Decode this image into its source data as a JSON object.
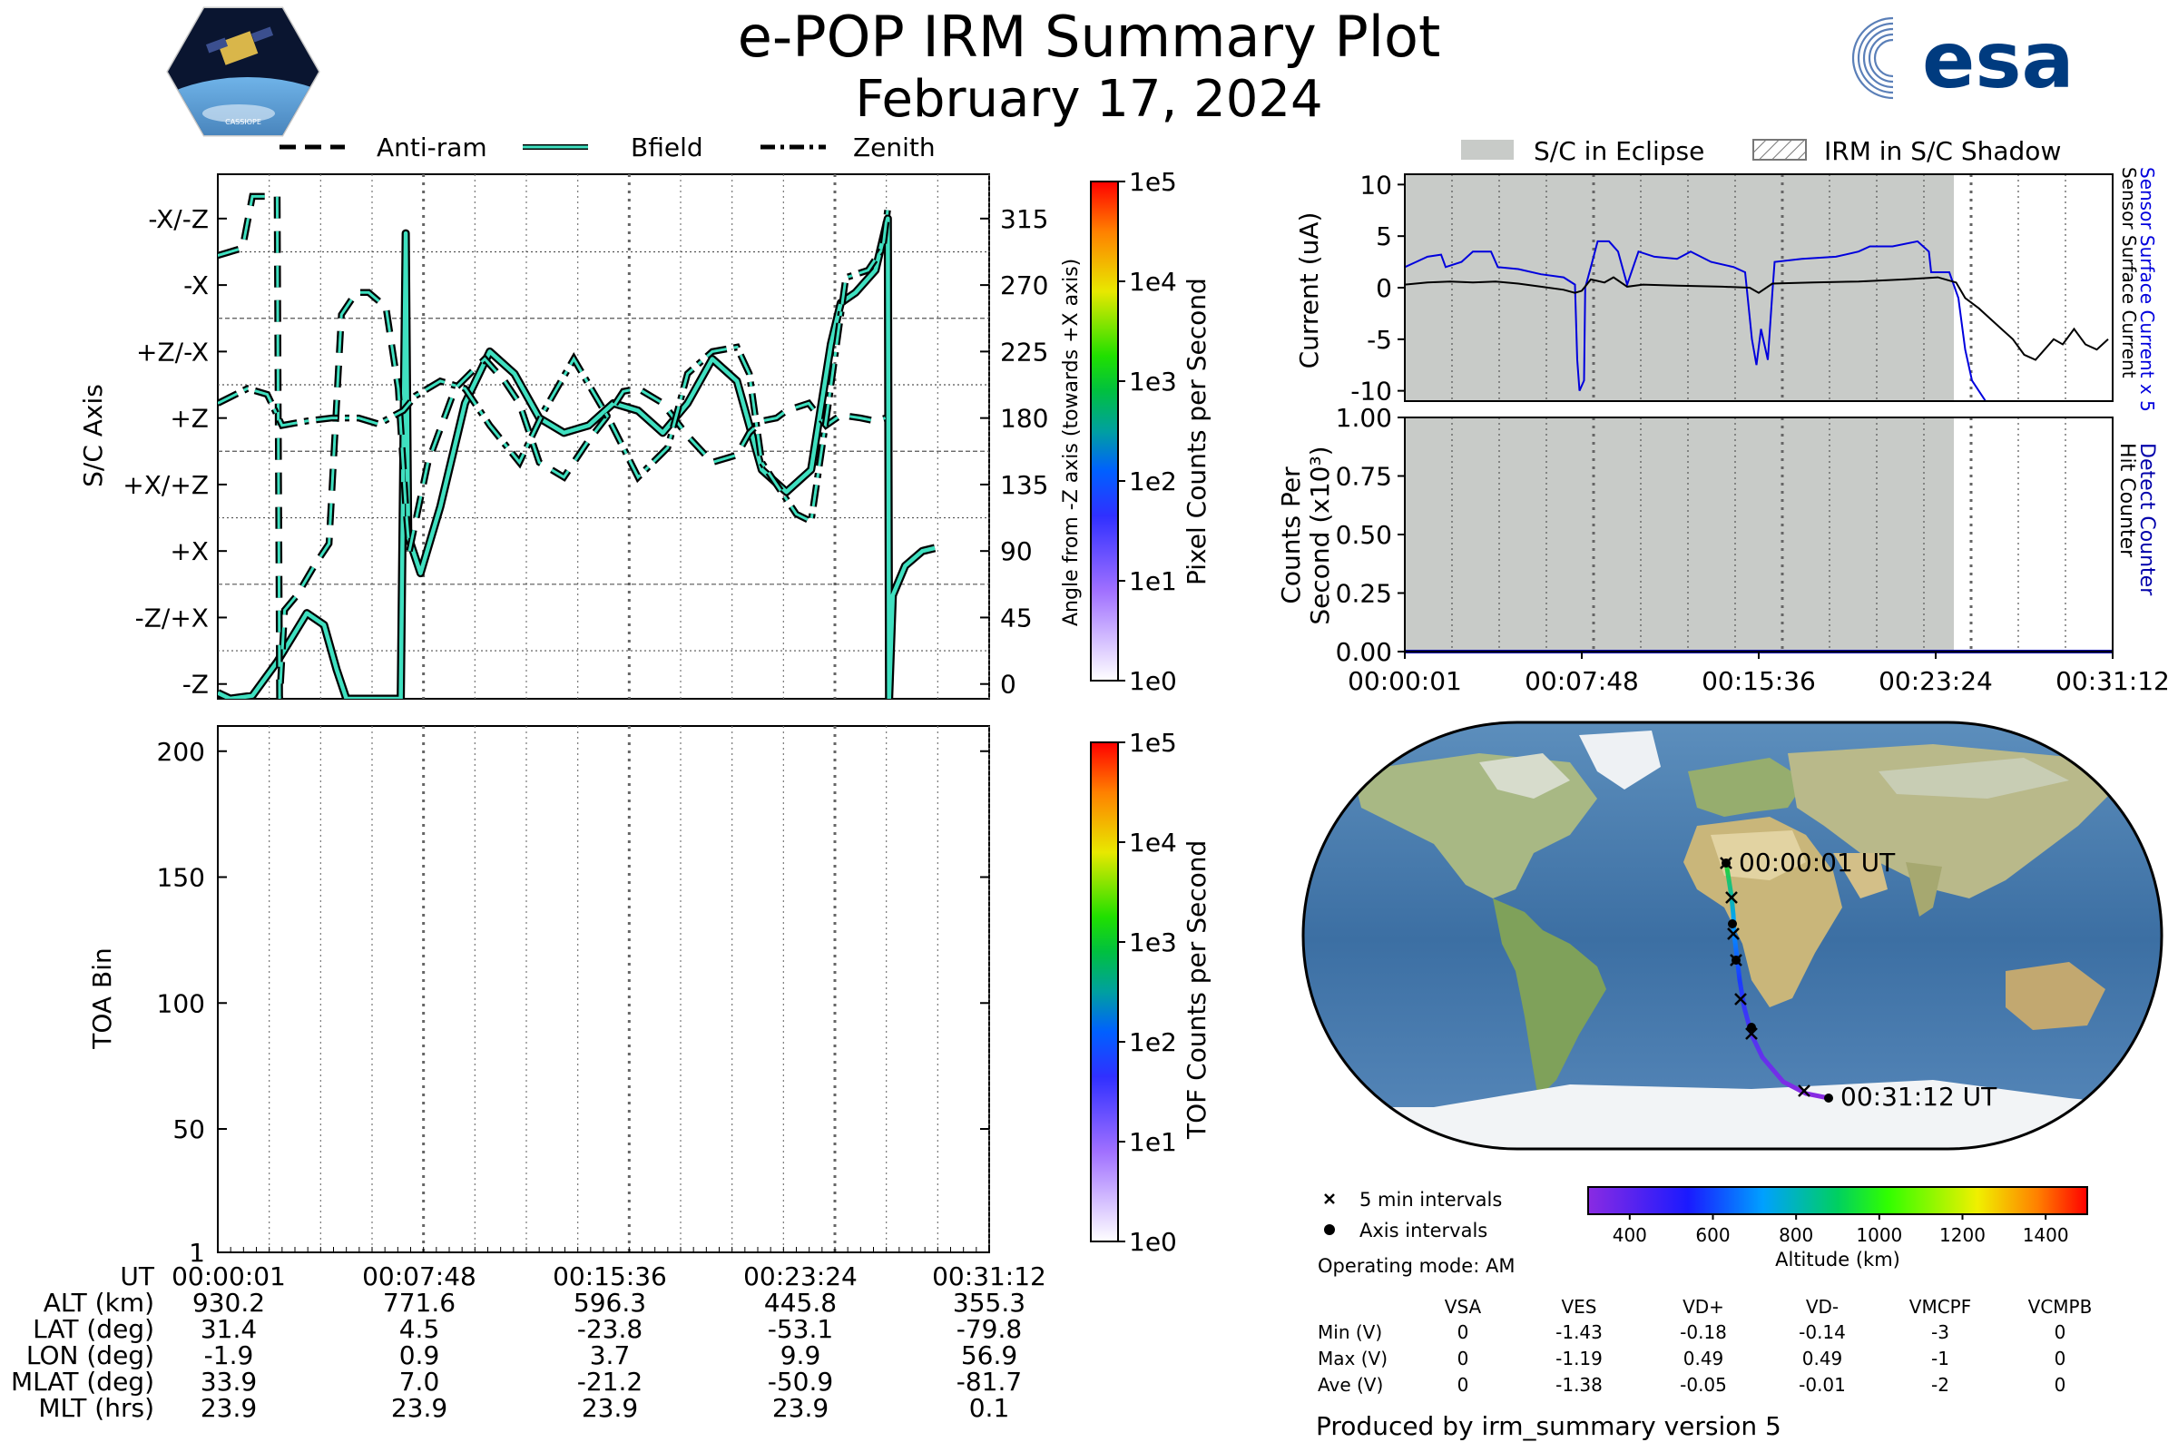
{
  "header": {
    "title": "e-POP IRM Summary Plot",
    "date": "February 17, 2024",
    "left_logo_text": "CASSIOPE",
    "right_logo_text": "esa"
  },
  "colors": {
    "bfield": "#3fe0c0",
    "current_blue": "#0000dd",
    "eclipse_gray": "#c8cbc8",
    "detect_blue": "#0000aa"
  },
  "legend_top": [
    "Anti-ram",
    "Bfield",
    "Zenith"
  ],
  "legend_right": [
    "S/C in Eclipse",
    "IRM in S/C Shadow"
  ],
  "axis_panel": {
    "ylabel": "S/C Axis",
    "ylabel_right": "Angle from -Z axis (towards +X axis)",
    "ytick_labels": [
      "-X/-Z",
      "-X",
      "+Z/-X",
      "+Z",
      "+X/+Z",
      "+X",
      "-Z/+X",
      "-Z"
    ],
    "right_ticks": [
      "315",
      "270",
      "225",
      "180",
      "135",
      "90",
      "45",
      "0"
    ],
    "colorbar_label": "Pixel Counts per Second",
    "colorbar_ticks": [
      "1e5",
      "1e4",
      "1e3",
      "1e2",
      "1e1",
      "1e0"
    ]
  },
  "toa_panel": {
    "ylabel": "TOA Bin",
    "ytick_labels": [
      "200",
      "150",
      "100",
      "50",
      "1"
    ],
    "colorbar_label": "TOF Counts per Second",
    "colorbar_ticks": [
      "1e5",
      "1e4",
      "1e3",
      "1e2",
      "1e1",
      "1e0"
    ]
  },
  "ephemeris": {
    "row_labels": [
      "UT",
      "ALT (km)",
      "LAT (deg)",
      "LON (deg)",
      "MLAT (deg)",
      "MLT (hrs)"
    ],
    "columns": [
      [
        "00:00:01",
        "930.2",
        "31.4",
        "-1.9",
        "33.9",
        "23.9"
      ],
      [
        "00:07:48",
        "771.6",
        "4.5",
        "0.9",
        "7.0",
        "23.9"
      ],
      [
        "00:15:36",
        "596.3",
        "-23.8",
        "3.7",
        "-21.2",
        "23.9"
      ],
      [
        "00:23:24",
        "445.8",
        "-53.1",
        "9.9",
        "-50.9",
        "23.9"
      ],
      [
        "00:31:12",
        "355.3",
        "-79.8",
        "56.9",
        "-81.7",
        "0.1"
      ]
    ]
  },
  "current_panel": {
    "ylabel": "Current (uA)",
    "right_label_1": "Sensor Surface Current x 5",
    "right_label_2": "Sensor Surface Current",
    "ytick_labels": [
      "10",
      "5",
      "0",
      "-5",
      "-10"
    ]
  },
  "counts_panel": {
    "ylabel_1": "Counts Per",
    "ylabel_2": "Second (x10³)",
    "right_label_1": "Detect Counter",
    "right_label_2": "Hit Counter",
    "ytick_labels": [
      "1.00",
      "0.75",
      "0.50",
      "0.25",
      "0.00"
    ],
    "xtick_labels": [
      "00:00:01",
      "00:07:48",
      "00:15:36",
      "00:23:24",
      "00:31:12"
    ]
  },
  "map": {
    "start_label": "00:00:01 UT",
    "end_label": "00:31:12 UT",
    "legend_cross": "5 min intervals",
    "legend_dot": "Axis intervals",
    "operating_mode": "Operating mode: AM",
    "colorbar_label": "Altitude (km)",
    "colorbar_ticks": [
      "400",
      "600",
      "800",
      "1000",
      "1200",
      "1400"
    ]
  },
  "voltages": {
    "headers": [
      "VSA",
      "VES",
      "VD+",
      "VD-",
      "VMCPF",
      "VCMPB"
    ],
    "rows": [
      {
        "label": "Min (V)",
        "values": [
          "0",
          "-1.43",
          "-0.18",
          "-0.14",
          "-3",
          "0"
        ]
      },
      {
        "label": "Max (V)",
        "values": [
          "0",
          "-1.19",
          "0.49",
          "0.49",
          "-1",
          "0"
        ]
      },
      {
        "label": "Ave (V)",
        "values": [
          "0",
          "-1.38",
          "-0.05",
          "-0.01",
          "-2",
          "0"
        ]
      }
    ]
  },
  "footer": "Produced by irm_summary version 5",
  "chart_data": [
    {
      "type": "line",
      "title": "",
      "xlabel": "",
      "ylabel": "S/C Axis",
      "ylim": [
        -10,
        345
      ],
      "x_unit": "minutes",
      "series": [
        {
          "name": "Bfield",
          "points": [
            [
              0.0,
              -6
            ],
            [
              0.5,
              -10
            ],
            [
              1.4,
              -8
            ],
            [
              2.4,
              15
            ],
            [
              3.6,
              48
            ],
            [
              4.3,
              40
            ],
            [
              4.8,
              10
            ],
            [
              5.2,
              -10
            ],
            [
              7.4,
              -10
            ],
            [
              7.6,
              305
            ],
            [
              7.7,
              100
            ],
            [
              8.2,
              75
            ],
            [
              9.0,
              120
            ],
            [
              10.0,
              190
            ],
            [
              11.0,
              225
            ],
            [
              12.0,
              210
            ],
            [
              13.0,
              180
            ],
            [
              14.0,
              170
            ],
            [
              15.0,
              175
            ],
            [
              16.0,
              190
            ],
            [
              17.0,
              185
            ],
            [
              18.0,
              170
            ],
            [
              19.0,
              190
            ],
            [
              20.0,
              220
            ],
            [
              21.0,
              205
            ],
            [
              22.0,
              145
            ],
            [
              23.0,
              130
            ],
            [
              24.0,
              145
            ],
            [
              24.8,
              230
            ],
            [
              25.2,
              258
            ],
            [
              25.8,
              265
            ],
            [
              26.6,
              280
            ],
            [
              27.1,
              315
            ],
            [
              27.15,
              -10
            ],
            [
              27.3,
              60
            ],
            [
              27.8,
              80
            ],
            [
              28.5,
              90
            ],
            [
              29.0,
              92
            ]
          ]
        },
        {
          "name": "Anti-ram",
          "points": [
            [
              0.0,
              290
            ],
            [
              1.0,
              295
            ],
            [
              1.4,
              330
            ],
            [
              2.0,
              330
            ],
            [
              2.4,
              330
            ],
            [
              2.5,
              -10
            ],
            [
              2.7,
              50
            ],
            [
              3.2,
              60
            ],
            [
              3.9,
              80
            ],
            [
              4.5,
              95
            ],
            [
              5.0,
              250
            ],
            [
              5.6,
              265
            ],
            [
              6.1,
              265
            ],
            [
              6.8,
              255
            ],
            [
              7.3,
              200
            ],
            [
              7.6,
              120
            ],
            [
              7.75,
              90
            ],
            [
              8.5,
              150
            ],
            [
              9.6,
              200
            ],
            [
              10.8,
              220
            ],
            [
              11.6,
              205
            ],
            [
              12.2,
              190
            ],
            [
              13.0,
              150
            ],
            [
              14.0,
              140
            ],
            [
              15.0,
              165
            ],
            [
              15.7,
              180
            ],
            [
              16.4,
              198
            ],
            [
              17.0,
              200
            ],
            [
              18.0,
              190
            ],
            [
              19.0,
              168
            ],
            [
              20.0,
              150
            ],
            [
              21.0,
              155
            ],
            [
              21.5,
              170
            ],
            [
              22.0,
              178
            ],
            [
              22.6,
              180
            ],
            [
              23.0,
              185
            ],
            [
              23.9,
              190
            ],
            [
              24.6,
              175
            ],
            [
              25.2,
              182
            ],
            [
              26.0,
              180
            ],
            [
              26.6,
              178
            ],
            [
              27.0,
              180
            ]
          ]
        },
        {
          "name": "Zenith",
          "points": [
            [
              0.0,
              190
            ],
            [
              1.2,
              200
            ],
            [
              2.0,
              196
            ],
            [
              2.6,
              175
            ],
            [
              3.6,
              178
            ],
            [
              4.6,
              180
            ],
            [
              5.7,
              180
            ],
            [
              6.5,
              176
            ],
            [
              7.5,
              185
            ],
            [
              8.0,
              195
            ],
            [
              9.0,
              205
            ],
            [
              10.0,
              200
            ],
            [
              11.0,
              175
            ],
            [
              12.2,
              150
            ],
            [
              13.2,
              185
            ],
            [
              14.4,
              220
            ],
            [
              15.8,
              180
            ],
            [
              17.0,
              140
            ],
            [
              18.2,
              160
            ],
            [
              19.0,
              210
            ],
            [
              20.0,
              225
            ],
            [
              21.0,
              228
            ],
            [
              21.5,
              210
            ],
            [
              22.0,
              150
            ],
            [
              22.6,
              135
            ],
            [
              23.4,
              115
            ],
            [
              24.0,
              110
            ],
            [
              24.7,
              190
            ],
            [
              25.4,
              275
            ],
            [
              26.3,
              280
            ],
            [
              26.9,
              295
            ],
            [
              27.1,
              322
            ]
          ]
        }
      ]
    },
    {
      "type": "heatmap",
      "title": "",
      "xlabel": "",
      "ylabel": "TOA Bin",
      "ylim": [
        1,
        210
      ],
      "values": []
    },
    {
      "type": "line",
      "title": "",
      "xlabel": "",
      "ylabel": "Current (uA)",
      "ylim": [
        -11,
        11
      ],
      "x_unit": "minutes",
      "series": [
        {
          "name": "Sensor Surface Current x 5",
          "points": [
            [
              0.0,
              2
            ],
            [
              0.5,
              2.5
            ],
            [
              1.0,
              3
            ],
            [
              1.6,
              3.2
            ],
            [
              1.8,
              2
            ],
            [
              2.5,
              2.5
            ],
            [
              3.0,
              3.5
            ],
            [
              3.8,
              3.5
            ],
            [
              4.1,
              2
            ],
            [
              5.0,
              1.8
            ],
            [
              6.0,
              1.3
            ],
            [
              7.0,
              1.0
            ],
            [
              7.5,
              0.3
            ],
            [
              7.6,
              -7
            ],
            [
              7.7,
              -10
            ],
            [
              7.9,
              -9
            ],
            [
              7.95,
              0
            ],
            [
              8.2,
              2
            ],
            [
              8.5,
              4.5
            ],
            [
              9.0,
              4.5
            ],
            [
              9.4,
              3.5
            ],
            [
              9.8,
              0.3
            ],
            [
              10.3,
              3.5
            ],
            [
              11.0,
              3.0
            ],
            [
              12.0,
              2.8
            ],
            [
              12.6,
              3.5
            ],
            [
              13.5,
              2.5
            ],
            [
              14.5,
              2.0
            ],
            [
              15.0,
              1.5
            ],
            [
              15.3,
              -5
            ],
            [
              15.5,
              -7.5
            ],
            [
              15.7,
              -4
            ],
            [
              16.0,
              -7
            ],
            [
              16.2,
              -0.5
            ],
            [
              16.3,
              2.5
            ],
            [
              17.5,
              2.8
            ],
            [
              19.0,
              3.0
            ],
            [
              20.0,
              3.5
            ],
            [
              20.5,
              4.0
            ],
            [
              21.5,
              4.0
            ],
            [
              22.6,
              4.5
            ],
            [
              23.1,
              3.5
            ],
            [
              23.2,
              1.5
            ],
            [
              24.0,
              1.5
            ],
            [
              24.4,
              -1
            ],
            [
              24.7,
              -6
            ],
            [
              25.0,
              -9
            ],
            [
              25.6,
              -11
            ]
          ]
        },
        {
          "name": "Sensor Surface Current",
          "points": [
            [
              0.0,
              0.3
            ],
            [
              1.0,
              0.5
            ],
            [
              2.0,
              0.6
            ],
            [
              3.0,
              0.5
            ],
            [
              4.0,
              0.6
            ],
            [
              5.0,
              0.4
            ],
            [
              6.0,
              0.1
            ],
            [
              7.0,
              -0.2
            ],
            [
              7.5,
              -0.5
            ],
            [
              7.8,
              -0.3
            ],
            [
              8.2,
              0.8
            ],
            [
              8.8,
              0.5
            ],
            [
              9.2,
              1.0
            ],
            [
              9.8,
              0.1
            ],
            [
              10.5,
              0.3
            ],
            [
              12.0,
              0.2
            ],
            [
              14.0,
              0.1
            ],
            [
              15.2,
              0.0
            ],
            [
              15.6,
              -0.5
            ],
            [
              16.2,
              0.4
            ],
            [
              18.0,
              0.5
            ],
            [
              20.0,
              0.6
            ],
            [
              22.0,
              0.8
            ],
            [
              23.5,
              1.0
            ],
            [
              24.3,
              0.5
            ],
            [
              24.7,
              -1
            ],
            [
              25.3,
              -2
            ],
            [
              25.8,
              -3
            ],
            [
              26.3,
              -4
            ],
            [
              26.8,
              -5
            ],
            [
              27.3,
              -6.5
            ],
            [
              27.8,
              -7
            ],
            [
              28.2,
              -6
            ],
            [
              28.6,
              -5
            ],
            [
              29.0,
              -5.5
            ],
            [
              29.5,
              -4
            ],
            [
              30.0,
              -5.5
            ],
            [
              30.5,
              -6
            ],
            [
              31.0,
              -5
            ]
          ]
        }
      ]
    },
    {
      "type": "line",
      "title": "",
      "xlabel": "",
      "ylabel": "Counts Per Second (x10³)",
      "ylim": [
        0,
        1
      ],
      "x_unit": "minutes",
      "series": [
        {
          "name": "Detect Counter",
          "points": [
            [
              0.0,
              0
            ],
            [
              31.2,
              0
            ]
          ]
        }
      ]
    }
  ]
}
